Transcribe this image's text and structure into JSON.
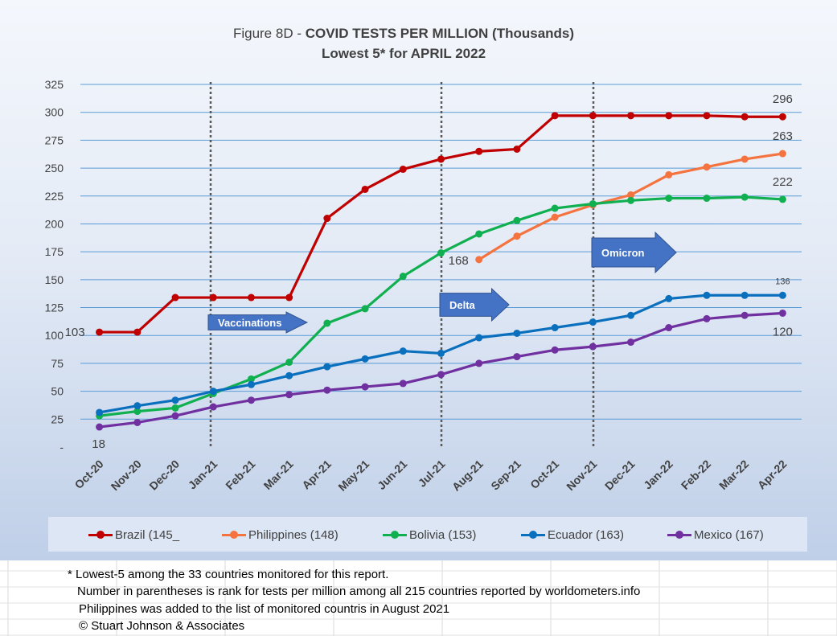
{
  "title": {
    "prefix": "Figure 8D - ",
    "bold": "COVID TESTS PER MILLION (Thousands)",
    "subtitle": "Lowest 5* for APRIL 2022"
  },
  "colors": {
    "Brazil": "#c00000",
    "Philippines": "#f4733e",
    "Bolivia": "#10b050",
    "Ecuador": "#0a70be",
    "Mexico": "#7030a0",
    "arrow": "#4472c4",
    "grid": "#5b9bd5"
  },
  "chart_data": {
    "type": "line",
    "categories": [
      "Oct-20",
      "Nov-20",
      "Dec-20",
      "Jan-21",
      "Feb-21",
      "Mar-21",
      "Apr-21",
      "May-21",
      "Jun-21",
      "Jul-21",
      "Aug-21",
      "Sep-21",
      "Oct-21",
      "Nov-21",
      "Dec-21",
      "Jan-22",
      "Feb-22",
      "Mar-22",
      "Apr-22"
    ],
    "ylim": [
      0,
      325
    ],
    "yticks": [
      "-",
      "25",
      "50",
      "75",
      "100",
      "125",
      "150",
      "175",
      "200",
      "225",
      "250",
      "275",
      "300",
      "325"
    ],
    "grid": true,
    "legend_position": "bottom",
    "series": [
      {
        "name": "Brazil (145_",
        "key": "Brazil",
        "values": [
          103,
          103,
          134,
          134,
          134,
          134,
          205,
          231,
          249,
          258,
          265,
          267,
          297,
          297,
          297,
          297,
          297,
          296,
          296
        ]
      },
      {
        "name": "Philippines (148)",
        "key": "Philippines",
        "values": [
          null,
          null,
          null,
          null,
          null,
          null,
          null,
          null,
          null,
          null,
          168,
          189,
          206,
          217,
          226,
          244,
          251,
          258,
          263
        ]
      },
      {
        "name": "Bolivia (153)",
        "key": "Bolivia",
        "values": [
          28,
          32,
          35,
          48,
          61,
          76,
          111,
          124,
          153,
          174,
          191,
          203,
          214,
          218,
          221,
          223,
          223,
          224,
          222
        ]
      },
      {
        "name": "Ecuador (163)",
        "key": "Ecuador",
        "values": [
          31,
          37,
          42,
          50,
          56,
          64,
          72,
          79,
          86,
          84,
          98,
          102,
          107,
          112,
          118,
          133,
          136,
          136,
          136
        ]
      },
      {
        "name": "Mexico (167)",
        "key": "Mexico",
        "values": [
          18,
          22,
          28,
          36,
          42,
          47,
          51,
          54,
          57,
          65,
          75,
          81,
          87,
          90,
          94,
          107,
          115,
          118,
          120
        ]
      }
    ],
    "data_labels": [
      {
        "text": "103",
        "series": "Brazil",
        "index": 0
      },
      {
        "text": "18",
        "series": "Mexico",
        "index": 0
      },
      {
        "text": "296",
        "series": "Brazil",
        "index": 18
      },
      {
        "text": "263",
        "series": "Philippines",
        "index": 18
      },
      {
        "text": "222",
        "series": "Bolivia",
        "index": 18
      },
      {
        "text": "136",
        "series": "Ecuador",
        "index": 18
      },
      {
        "text": "120",
        "series": "Mexico",
        "index": 18
      },
      {
        "text": "168",
        "series": "Philippines",
        "index": 10
      }
    ],
    "markers": [
      {
        "index": 3,
        "label": "Vaccinations"
      },
      {
        "index": 9,
        "label": "Delta"
      },
      {
        "index": 13,
        "label": "Omicron"
      }
    ]
  },
  "footnotes": [
    "* Lowest-5 among the 33 countries monitored for this report.",
    "Number in parentheses is rank for tests per million among all 215 countries reported by worldometers.info",
    "Philippines  was added to the list of monitored countris in August 2021",
    "© Stuart Johnson & Associates"
  ]
}
